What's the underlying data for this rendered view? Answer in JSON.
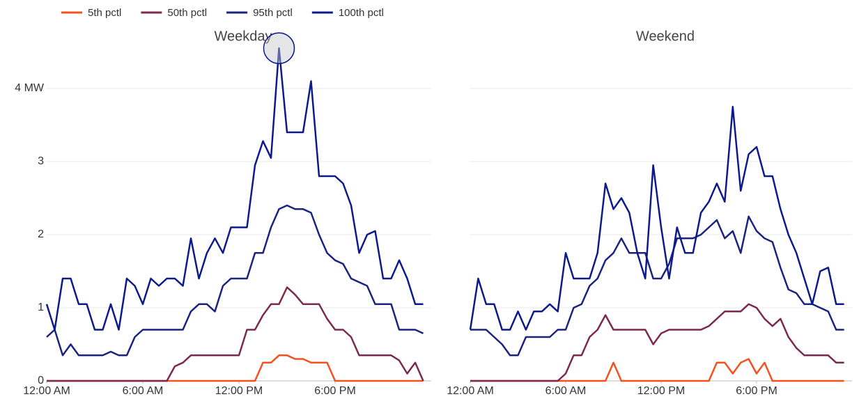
{
  "chart_data": [
    {
      "type": "line",
      "title": "Weekday",
      "x": [
        0,
        0.5,
        1,
        1.5,
        2,
        2.5,
        3,
        3.5,
        4,
        4.5,
        5,
        5.5,
        6,
        6.5,
        7,
        7.5,
        8,
        8.5,
        9,
        9.5,
        10,
        10.5,
        11,
        11.5,
        12,
        12.5,
        13,
        13.5,
        14,
        14.5,
        15,
        15.5,
        16,
        16.5,
        17,
        17.5,
        18,
        18.5,
        19,
        19.5,
        20,
        20.5,
        21,
        21.5,
        22,
        22.5,
        23,
        23.5
      ],
      "xlim": [
        0,
        24
      ],
      "xticks": [
        {
          "value": 0,
          "label": "12:00 AM"
        },
        {
          "value": 6,
          "label": "6:00 AM"
        },
        {
          "value": 12,
          "label": "12:00 PM"
        },
        {
          "value": 18,
          "label": "6:00 PM"
        }
      ],
      "ylim": [
        0,
        4.8
      ],
      "yticks": [
        0,
        1,
        2,
        3,
        {
          "value": 4,
          "label": "4 MW"
        }
      ],
      "ytick_labels": true,
      "grid": true,
      "highlight_max": true,
      "series": [
        {
          "name": "5th pctl",
          "color": "#f4511e",
          "values": [
            0,
            0,
            0,
            0,
            0,
            0,
            0,
            0,
            0,
            0,
            0,
            0,
            0,
            0,
            0,
            0,
            0,
            0,
            0,
            0,
            0,
            0,
            0,
            0,
            0,
            0,
            0,
            0.25,
            0.25,
            0.35,
            0.35,
            0.3,
            0.3,
            0.25,
            0.25,
            0.25,
            0,
            0,
            0,
            0,
            0,
            0,
            0,
            0,
            0,
            0,
            0,
            0
          ]
        },
        {
          "name": "50th pctl",
          "color": "#7b2a4f",
          "values": [
            0,
            0,
            0,
            0,
            0,
            0,
            0,
            0,
            0,
            0,
            0,
            0,
            0,
            0,
            0,
            0,
            0.2,
            0.25,
            0.35,
            0.35,
            0.35,
            0.35,
            0.35,
            0.35,
            0.35,
            0.7,
            0.7,
            0.9,
            1.05,
            1.05,
            1.28,
            1.18,
            1.05,
            1.05,
            1.05,
            0.85,
            0.7,
            0.7,
            0.6,
            0.35,
            0.35,
            0.35,
            0.35,
            0.35,
            0.28,
            0.1,
            0.25,
            0
          ]
        },
        {
          "name": "95th pctl",
          "color": "#1a237e",
          "values": [
            0.6,
            0.7,
            0.35,
            0.5,
            0.35,
            0.35,
            0.35,
            0.35,
            0.4,
            0.35,
            0.35,
            0.6,
            0.7,
            0.7,
            0.7,
            0.7,
            0.7,
            0.7,
            0.95,
            1.05,
            1.05,
            0.95,
            1.3,
            1.4,
            1.4,
            1.4,
            1.75,
            1.75,
            2.1,
            2.35,
            2.4,
            2.35,
            2.35,
            2.3,
            2.0,
            1.75,
            1.65,
            1.6,
            1.4,
            1.35,
            1.3,
            1.05,
            1.05,
            1.05,
            0.7,
            0.7,
            0.7,
            0.65
          ]
        },
        {
          "name": "100th pctl",
          "color": "#0d1a8c",
          "values": [
            1.05,
            0.7,
            1.4,
            1.4,
            1.05,
            1.05,
            0.7,
            0.7,
            1.05,
            0.7,
            1.4,
            1.3,
            1.05,
            1.4,
            1.3,
            1.4,
            1.4,
            1.3,
            1.95,
            1.4,
            1.75,
            1.95,
            1.75,
            2.1,
            2.1,
            2.1,
            2.95,
            3.28,
            3.05,
            4.55,
            3.4,
            3.4,
            3.4,
            4.1,
            2.8,
            2.8,
            2.8,
            2.7,
            2.4,
            1.75,
            2.0,
            2.05,
            1.4,
            1.4,
            1.65,
            1.4,
            1.05,
            1.05
          ]
        }
      ]
    },
    {
      "type": "line",
      "title": "Weekend",
      "x": [
        0,
        0.5,
        1,
        1.5,
        2,
        2.5,
        3,
        3.5,
        4,
        4.5,
        5,
        5.5,
        6,
        6.5,
        7,
        7.5,
        8,
        8.5,
        9,
        9.5,
        10,
        10.5,
        11,
        11.5,
        12,
        12.5,
        13,
        13.5,
        14,
        14.5,
        15,
        15.5,
        16,
        16.5,
        17,
        17.5,
        18,
        18.5,
        19,
        19.5,
        20,
        20.5,
        21,
        21.5,
        22,
        22.5,
        23,
        23.5
      ],
      "xlim": [
        0,
        24
      ],
      "xticks": [
        {
          "value": 0,
          "label": "12:00 AM"
        },
        {
          "value": 6,
          "label": "6:00 AM"
        },
        {
          "value": 12,
          "label": "12:00 PM"
        },
        {
          "value": 18,
          "label": "6:00 PM"
        }
      ],
      "ylim": [
        0,
        4.8
      ],
      "yticks": [
        0,
        1,
        2,
        3,
        4
      ],
      "ytick_labels": false,
      "grid": true,
      "highlight_max": false,
      "series": [
        {
          "color": "#f4511e",
          "values": [
            0,
            0,
            0,
            0,
            0,
            0,
            0,
            0,
            0,
            0,
            0,
            0,
            0,
            0,
            0,
            0,
            0,
            0,
            0.25,
            0,
            0,
            0,
            0,
            0,
            0,
            0,
            0,
            0,
            0,
            0,
            0,
            0.25,
            0.25,
            0.1,
            0.25,
            0.3,
            0.1,
            0.25,
            0,
            0,
            0,
            0,
            0,
            0,
            0,
            0,
            0,
            0
          ]
        },
        {
          "color": "#7b2a4f",
          "values": [
            0,
            0,
            0,
            0,
            0,
            0,
            0,
            0,
            0,
            0,
            0,
            0,
            0.1,
            0.35,
            0.35,
            0.6,
            0.7,
            0.9,
            0.7,
            0.7,
            0.7,
            0.7,
            0.7,
            0.5,
            0.65,
            0.7,
            0.7,
            0.7,
            0.7,
            0.7,
            0.75,
            0.85,
            0.95,
            0.95,
            0.95,
            1.05,
            1.0,
            0.85,
            0.75,
            0.85,
            0.6,
            0.45,
            0.35,
            0.35,
            0.35,
            0.35,
            0.25,
            0.25
          ]
        },
        {
          "color": "#1a237e",
          "values": [
            0.7,
            0.7,
            0.7,
            0.6,
            0.5,
            0.35,
            0.35,
            0.6,
            0.6,
            0.6,
            0.6,
            0.7,
            0.7,
            1.0,
            1.05,
            1.3,
            1.4,
            1.65,
            1.75,
            1.95,
            1.75,
            1.75,
            1.75,
            1.4,
            1.4,
            1.6,
            1.95,
            1.95,
            1.95,
            2.0,
            2.1,
            2.2,
            1.95,
            2.05,
            1.75,
            2.25,
            2.05,
            1.95,
            1.9,
            1.55,
            1.25,
            1.2,
            1.05,
            1.05,
            1.0,
            0.95,
            0.7,
            0.7
          ]
        },
        {
          "color": "#0d1a8c",
          "values": [
            0.7,
            1.4,
            1.05,
            1.05,
            0.7,
            0.7,
            0.95,
            0.7,
            0.95,
            0.95,
            1.05,
            0.95,
            1.75,
            1.4,
            1.4,
            1.4,
            1.75,
            2.7,
            2.35,
            2.5,
            2.3,
            1.75,
            1.4,
            2.95,
            2.1,
            1.4,
            2.1,
            1.75,
            1.75,
            2.3,
            2.45,
            2.7,
            2.45,
            3.75,
            2.6,
            3.1,
            3.2,
            2.8,
            2.8,
            2.35,
            2.0,
            1.75,
            1.4,
            1.05,
            1.5,
            1.55,
            1.05,
            1.05
          ]
        }
      ]
    }
  ]
}
